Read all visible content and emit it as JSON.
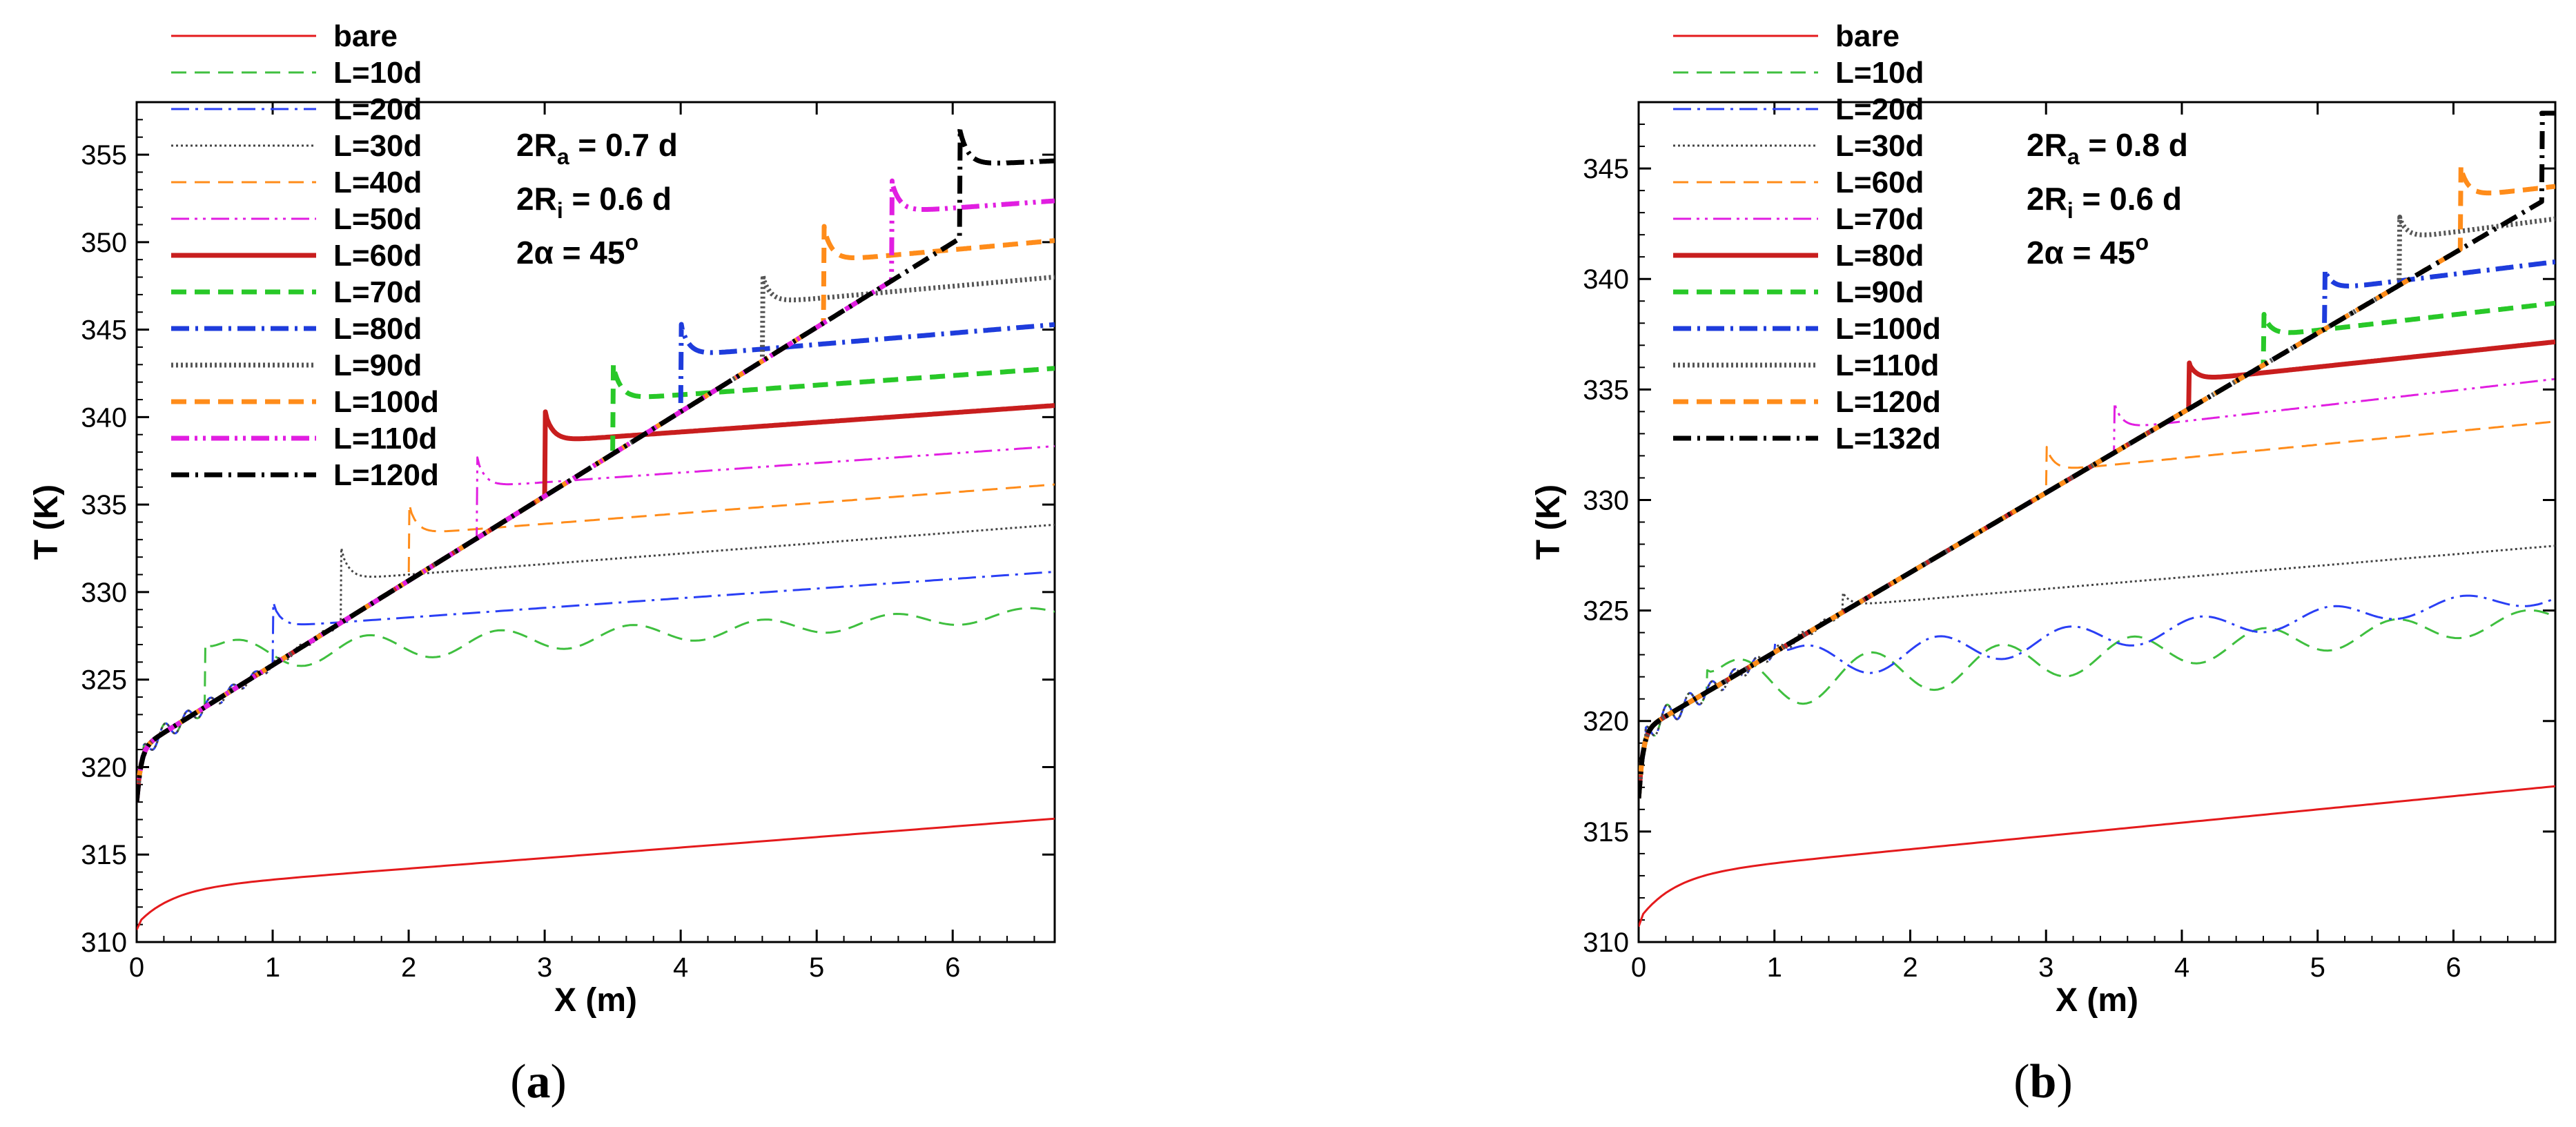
{
  "chart_data": [
    {
      "type": "line",
      "panel_label": "(a)",
      "panel_label_pre": "(",
      "panel_label_letter": "a",
      "panel_label_post": ")",
      "xlabel": "X (m)",
      "ylabel": "T (K)",
      "xlim": [
        0,
        6.75
      ],
      "ylim": [
        310,
        358
      ],
      "xticks": [
        0,
        1,
        2,
        3,
        4,
        5,
        6
      ],
      "yticks": [
        310,
        315,
        320,
        325,
        330,
        335,
        340,
        345,
        350,
        355
      ],
      "annotation": {
        "ra_pre": "2R",
        "ra_sub": "a",
        "ra_post": " = 0.7 d",
        "ri_pre": "2R",
        "ri_sub": "i",
        "ri_post": " = 0.6 d",
        "alpha_pre": "2α  = 45",
        "alpha_sup": "o"
      },
      "series": [
        {
          "name": "bare",
          "color": "#e41a1c",
          "style": "solid",
          "width": "thin",
          "x_onset": null,
          "base_end": null,
          "jump": 0,
          "plateau_start": 310.9,
          "plateau_slope": 0.95,
          "is_bare": true,
          "x": [
            0,
            0.1,
            0.3,
            0.6,
            1,
            2,
            3,
            4,
            5,
            6,
            6.75
          ],
          "values": [
            310.9,
            312.2,
            313.0,
            313.4,
            313.7,
            314.4,
            315.0,
            315.6,
            316.2,
            316.8,
            317.3
          ]
        },
        {
          "name": "L=10d",
          "color": "#3fbf3f",
          "style": "dash",
          "width": "thin",
          "x_onset": 0.5,
          "base_end": 323.0,
          "jump": 4.0,
          "plateau_start": 326.3,
          "plateau_slope": 0.4,
          "wave": 0.9,
          "x": [
            0,
            0.5,
            1,
            2,
            3,
            4,
            5,
            6,
            6.75
          ],
          "values": [
            318,
            323.0,
            326.0,
            327.0,
            326.5,
            327.2,
            327.6,
            328.5,
            328.8
          ]
        },
        {
          "name": "L=20d",
          "color": "#2a3ff5",
          "style": "dashdot",
          "width": "thin",
          "x_onset": 1.0,
          "base_end": 325.6,
          "jump": 3.8,
          "plateau_start": 328.0,
          "plateau_slope": 0.55,
          "x": [
            0,
            1,
            2,
            3,
            4,
            5,
            6,
            6.75
          ],
          "values": [
            318,
            328.2,
            328.5,
            329.0,
            329.6,
            330.2,
            330.8,
            331.2
          ]
        },
        {
          "name": "L=30d",
          "color": "#444444",
          "style": "dotted",
          "width": "thin",
          "x_onset": 1.5,
          "base_end": 328.0,
          "jump": 4.5,
          "plateau_start": 330.7,
          "plateau_slope": 0.6,
          "x": [
            0,
            1.5,
            2,
            3,
            4,
            5,
            6,
            6.75
          ],
          "values": [
            321,
            330.8,
            330.9,
            331.6,
            332.2,
            332.8,
            333.4,
            333.7
          ]
        },
        {
          "name": "L=40d",
          "color": "#ff8c1a",
          "style": "dash",
          "width": "thin",
          "x_onset": 2.0,
          "base_end": 330.5,
          "jump": 4.5,
          "plateau_start": 333.3,
          "plateau_slope": 0.6,
          "x": [
            0,
            2,
            3,
            4,
            5,
            6,
            6.75
          ],
          "values": [
            319.5,
            333.3,
            333.9,
            334.5,
            335.1,
            335.7,
            336.0
          ]
        },
        {
          "name": "L=50d",
          "color": "#e11ee1",
          "style": "dashdotdot",
          "width": "thin",
          "x_onset": 2.5,
          "base_end": 332.5,
          "jump": 5.2,
          "plateau_start": 336.0,
          "plateau_slope": 0.55,
          "x": [
            0,
            2.5,
            3,
            4,
            5,
            6,
            6.75
          ],
          "values": [
            319.5,
            336.0,
            336.3,
            336.8,
            337.4,
            337.9,
            338.2
          ]
        },
        {
          "name": "L=60d",
          "color": "#c81e1e",
          "style": "solid",
          "width": "thick",
          "x_onset": 3.0,
          "base_end": 334.5,
          "jump": 5.8,
          "plateau_start": 338.6,
          "plateau_slope": 0.55,
          "x": [
            0,
            3,
            3.5,
            4,
            5,
            6,
            6.75
          ],
          "values": [
            319.5,
            338.6,
            338.7,
            339.0,
            339.5,
            340.1,
            340.6
          ]
        },
        {
          "name": "L=70d",
          "color": "#28c828",
          "style": "dash",
          "width": "thick",
          "x_onset": 3.5,
          "base_end": 336.8,
          "jump": 6.2,
          "plateau_start": 341.0,
          "plateau_slope": 0.55,
          "x": [
            0,
            3.5,
            4,
            5,
            6,
            6.75
          ],
          "values": [
            319.5,
            341.0,
            341.3,
            341.9,
            342.4,
            342.9
          ]
        },
        {
          "name": "L=80d",
          "color": "#1e3cdc",
          "style": "dashdot",
          "width": "thick",
          "x_onset": 4.0,
          "base_end": 339.0,
          "jump": 6.3,
          "plateau_start": 343.5,
          "plateau_slope": 0.65,
          "x": [
            0,
            4,
            5,
            6,
            6.75
          ],
          "values": [
            319.5,
            343.5,
            344.1,
            344.8,
            345.3
          ]
        },
        {
          "name": "L=90d",
          "color": "#555555",
          "style": "dotted",
          "width": "thick",
          "x_onset": 4.6,
          "base_end": 342.0,
          "jump": 6.1,
          "plateau_start": 346.5,
          "plateau_slope": 0.7,
          "x": [
            0,
            4.6,
            5,
            6,
            6.75
          ],
          "values": [
            319.5,
            346.5,
            346.8,
            347.3,
            347.8
          ]
        },
        {
          "name": "L=100d",
          "color": "#ff8c1a",
          "style": "dash",
          "width": "thick",
          "x_onset": 5.05,
          "base_end": 344.6,
          "jump": 6.3,
          "plateau_start": 348.9,
          "plateau_slope": 0.7,
          "x": [
            0,
            5.05,
            5.5,
            6,
            6.75
          ],
          "values": [
            319.5,
            348.9,
            349.2,
            349.6,
            350.1
          ]
        },
        {
          "name": "L=110d",
          "color": "#e11ee1",
          "style": "dashdotdot",
          "width": "thick",
          "x_onset": 5.55,
          "base_end": 347.5,
          "jump": 6.0,
          "plateau_start": 351.7,
          "plateau_slope": 0.55,
          "x": [
            0,
            5.55,
            6,
            6.75
          ],
          "values": [
            319.5,
            351.7,
            352.0,
            352.3
          ]
        },
        {
          "name": "L=120d",
          "color": "#000000",
          "style": "dashdot",
          "width": "thick",
          "x_onset": 6.05,
          "base_end": 350.2,
          "jump": 6.3,
          "plateau_start": 354.4,
          "plateau_slope": 0.35,
          "x": [
            0,
            6.05,
            6.5,
            6.75
          ],
          "values": [
            319.5,
            354.4,
            354.5,
            354.6
          ]
        }
      ]
    },
    {
      "type": "line",
      "panel_label": "(b)",
      "panel_label_pre": "(",
      "panel_label_letter": "b",
      "panel_label_post": ")",
      "xlabel": "X (m)",
      "ylabel": "T (K)",
      "xlim": [
        0,
        6.75
      ],
      "ylim": [
        310,
        348
      ],
      "xticks": [
        0,
        1,
        2,
        3,
        4,
        5,
        6
      ],
      "yticks": [
        310,
        315,
        320,
        325,
        330,
        335,
        340,
        345
      ],
      "annotation": {
        "ra_pre": "2R",
        "ra_sub": "a",
        "ra_post": " = 0.8 d",
        "ri_pre": "2R",
        "ri_sub": "i",
        "ri_post": " = 0.6 d",
        "alpha_pre": "2α  = 45",
        "alpha_sup": "o"
      },
      "series": [
        {
          "name": "bare",
          "color": "#e41a1c",
          "style": "solid",
          "width": "thin",
          "x_onset": null,
          "base_end": null,
          "jump": 0,
          "plateau_start": 310.9,
          "plateau_slope": 0.95,
          "is_bare": true,
          "x": [
            0,
            0.1,
            0.3,
            0.6,
            1,
            2,
            3,
            4,
            5,
            6,
            6.75
          ],
          "values": [
            310.9,
            312.2,
            313.0,
            313.4,
            313.7,
            314.4,
            315.0,
            315.6,
            316.2,
            316.8,
            317.3
          ]
        },
        {
          "name": "L=10d",
          "color": "#3fbf3f",
          "style": "dash",
          "width": "thin",
          "x_onset": 0.5,
          "base_end": 318.3,
          "jump": 4.0,
          "plateau_start": 321.5,
          "plateau_slope": 0.5,
          "wave": 1.2,
          "x": [
            0,
            0.5,
            1,
            2,
            3,
            4,
            5,
            6,
            6.75
          ],
          "values": [
            316.5,
            318.3,
            321.0,
            322.0,
            322.8,
            323.2,
            323.8,
            324.4,
            325.0
          ]
        },
        {
          "name": "L=20d",
          "color": "#2a3ff5",
          "style": "dashdot",
          "width": "thin",
          "x_onset": 1.0,
          "base_end": 320.0,
          "jump": 3.5,
          "plateau_start": 322.5,
          "plateau_slope": 0.55,
          "wave": 0.8,
          "x": [
            0,
            1,
            2,
            3,
            4,
            5,
            6,
            6.75
          ],
          "values": [
            316.5,
            322.5,
            323.8,
            324.3,
            324.9,
            325.4,
            325.9,
            326.1
          ]
        },
        {
          "name": "L=30d",
          "color": "#444444",
          "style": "dotted",
          "width": "thin",
          "x_onset": 1.5,
          "base_end": 321.8,
          "jump": 4.0,
          "plateau_start": 325.2,
          "plateau_slope": 0.52,
          "x": [
            0,
            1.5,
            2,
            3,
            4,
            5,
            6,
            6.75
          ],
          "values": [
            316.5,
            325.2,
            325.5,
            326.0,
            326.6,
            327.2,
            327.9,
            328.6
          ]
        },
        {
          "name": "L=60d",
          "color": "#ff8c1a",
          "style": "dash",
          "width": "thin",
          "x_onset": 3.0,
          "base_end": 327.2,
          "jump": 5.2,
          "plateau_start": 331.3,
          "plateau_slope": 0.6,
          "x": [
            0,
            3,
            3.5,
            4,
            5,
            6,
            6.75
          ],
          "values": [
            316.5,
            331.3,
            331.6,
            332.0,
            332.6,
            333.2,
            333.6
          ]
        },
        {
          "name": "L=70d",
          "color": "#e11ee1",
          "style": "dashdotdot",
          "width": "thin",
          "x_onset": 3.5,
          "base_end": 329.0,
          "jump": 5.4,
          "plateau_start": 333.2,
          "plateau_slope": 0.7,
          "x": [
            0,
            3.5,
            4,
            5,
            6,
            6.75
          ],
          "values": [
            316.5,
            333.2,
            333.7,
            334.4,
            335.2,
            335.8
          ]
        },
        {
          "name": "L=80d",
          "color": "#c81e1e",
          "style": "solid",
          "width": "thick",
          "x_onset": 4.05,
          "base_end": 332.8,
          "jump": 3.4,
          "plateau_start": 335.4,
          "plateau_slope": 0.65,
          "x": [
            0,
            4.05,
            4.5,
            5,
            6,
            6.75
          ],
          "values": [
            316.5,
            335.4,
            335.7,
            336.0,
            336.6,
            337.2
          ]
        },
        {
          "name": "L=90d",
          "color": "#28c828",
          "style": "dash",
          "width": "thick",
          "x_onset": 4.6,
          "base_end": 334.6,
          "jump": 3.8,
          "plateau_start": 337.4,
          "plateau_slope": 0.7,
          "x": [
            0,
            4.6,
            5,
            6,
            6.75
          ],
          "values": [
            316.5,
            337.4,
            337.7,
            338.4,
            339.0
          ]
        },
        {
          "name": "L=100d",
          "color": "#1e3cdc",
          "style": "dashdot",
          "width": "thick",
          "x_onset": 5.05,
          "base_end": 336.4,
          "jump": 4.0,
          "plateau_start": 339.5,
          "plateau_slope": 0.75,
          "x": [
            0,
            5.05,
            5.5,
            6,
            6.75
          ],
          "values": [
            316.5,
            339.5,
            339.8,
            340.2,
            340.8
          ]
        },
        {
          "name": "L=110d",
          "color": "#555555",
          "style": "dotted",
          "width": "thick",
          "x_onset": 5.6,
          "base_end": 338.4,
          "jump": 4.4,
          "plateau_start": 341.8,
          "plateau_slope": 0.8,
          "x": [
            0,
            5.6,
            6,
            6.75
          ],
          "values": [
            316.5,
            341.8,
            342.1,
            342.8
          ]
        },
        {
          "name": "L=120d",
          "color": "#ff8c1a",
          "style": "dash",
          "width": "thick",
          "x_onset": 6.05,
          "base_end": 340.6,
          "jump": 4.5,
          "plateau_start": 343.7,
          "plateau_slope": 0.7,
          "x": [
            0,
            6.05,
            6.5,
            6.75
          ],
          "values": [
            316.5,
            343.7,
            344.0,
            344.4
          ]
        },
        {
          "name": "L=132d",
          "color": "#000000",
          "style": "dashdot",
          "width": "thick",
          "x_onset": 6.65,
          "base_end": 343.5,
          "jump": 4.0,
          "plateau_start": 347.5,
          "plateau_slope": 0.0,
          "x": [
            0,
            6.65,
            6.75
          ],
          "values": [
            316.5,
            347.5,
            347.0
          ]
        }
      ]
    }
  ]
}
